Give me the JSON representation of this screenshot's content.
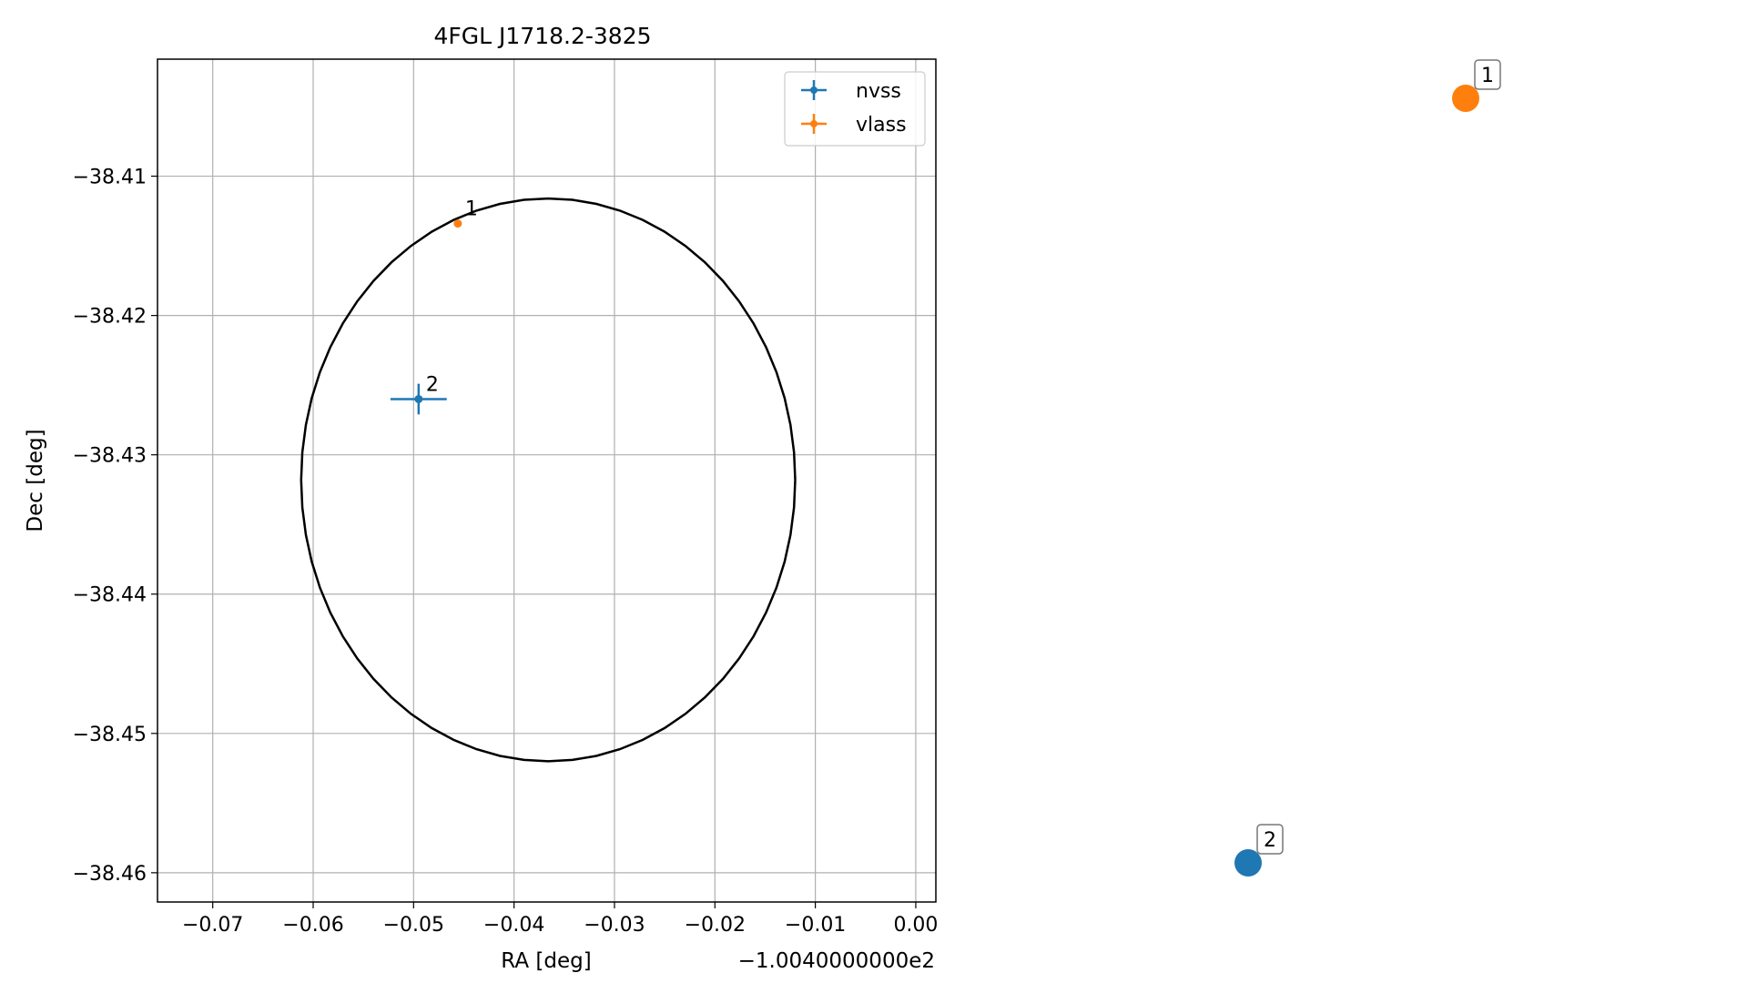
{
  "chart_data": {
    "type": "scatter",
    "title": "4FGL J1718.2-3825",
    "xlabel": "RA [deg]",
    "ylabel": "Dec [deg]",
    "offset_label": "−1.0040000000e2",
    "xlim": [
      -0.0755,
      0.002
    ],
    "ylim": [
      -38.4621,
      -38.4016
    ],
    "grid": true,
    "legend_position": "top-right",
    "x_ticks": [
      {
        "value": -0.07,
        "label": "−0.07"
      },
      {
        "value": -0.06,
        "label": "−0.06"
      },
      {
        "value": -0.05,
        "label": "−0.05"
      },
      {
        "value": -0.04,
        "label": "−0.04"
      },
      {
        "value": -0.03,
        "label": "−0.03"
      },
      {
        "value": -0.02,
        "label": "−0.02"
      },
      {
        "value": -0.01,
        "label": "−0.01"
      },
      {
        "value": 0.0,
        "label": "0.00"
      }
    ],
    "y_ticks": [
      {
        "value": -38.41,
        "label": "−38.41"
      },
      {
        "value": -38.42,
        "label": "−38.42"
      },
      {
        "value": -38.43,
        "label": "−38.43"
      },
      {
        "value": -38.44,
        "label": "−38.44"
      },
      {
        "value": -38.45,
        "label": "−38.45"
      },
      {
        "value": -38.46,
        "label": "−38.46"
      }
    ],
    "series": [
      {
        "name": "nvss",
        "color": "#1f77b4",
        "points": [
          {
            "label": "2",
            "x": -0.0495,
            "y": -38.426,
            "xerr": 0.0028,
            "yerr": 0.0011
          }
        ]
      },
      {
        "name": "vlass",
        "color": "#ff7f0e",
        "points": [
          {
            "label": "1",
            "x": -0.0456,
            "y": -38.4134,
            "xerr": 0.0,
            "yerr": 0.0
          }
        ]
      }
    ],
    "ellipse": {
      "color": "#000000",
      "center_x": -0.0366,
      "center_y": -38.4318,
      "semi_x": 0.0246,
      "semi_y": 0.0202
    }
  },
  "side_panel": {
    "markers": [
      {
        "label": "1",
        "color": "#ff7f0e"
      },
      {
        "label": "2",
        "color": "#1f77b4"
      }
    ]
  }
}
